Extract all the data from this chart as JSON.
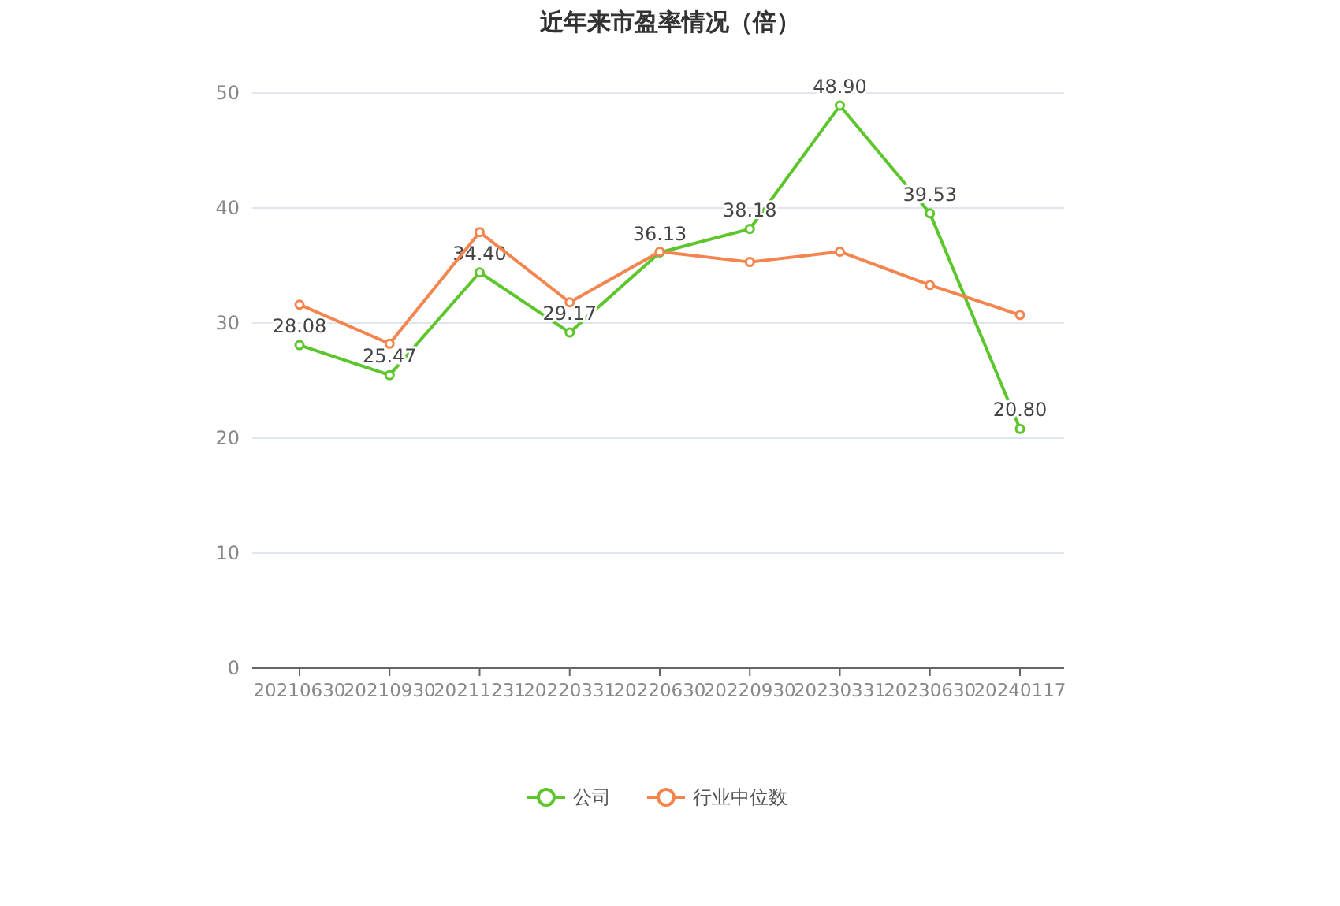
{
  "chart_data": {
    "type": "line",
    "title": "近年来市盈率情况（倍）",
    "categories": [
      "20210630",
      "20210930",
      "20211231",
      "20220331",
      "20220630",
      "20220930",
      "20230331",
      "20230630",
      "20240117"
    ],
    "series": [
      {
        "name": "公司",
        "color": "#5cc62c",
        "values": [
          28.08,
          25.47,
          34.4,
          29.17,
          36.13,
          38.18,
          48.9,
          39.53,
          20.8
        ],
        "value_labels": [
          "28.08",
          "25.47",
          "34.40",
          "29.17",
          "36.13",
          "38.18",
          "48.90",
          "39.53",
          "20.80"
        ]
      },
      {
        "name": "行业中位数",
        "color": "#f5854f",
        "values": [
          31.6,
          28.2,
          37.9,
          31.8,
          36.2,
          35.3,
          36.2,
          33.3,
          30.7
        ]
      }
    ],
    "ylim": [
      0,
      50
    ],
    "yticks": [
      0,
      10,
      20,
      30,
      40,
      50
    ],
    "grid": "y",
    "legend": "bottom",
    "marker": "circle",
    "line_style": "solid"
  }
}
